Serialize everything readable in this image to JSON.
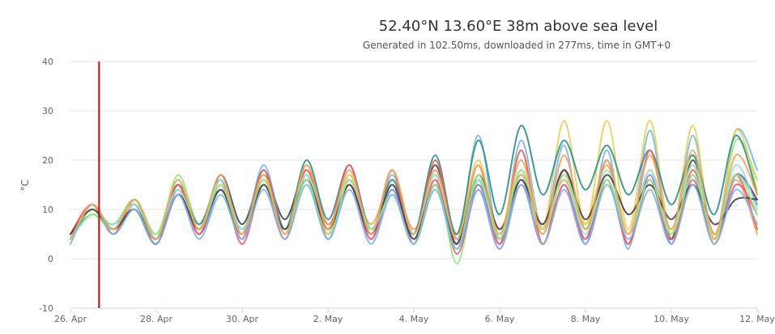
{
  "chart_data": {
    "type": "line",
    "title": "52.40°N 13.60°E 38m above sea level",
    "subtitle": "Generated in 102.50ms, downloaded in 277ms, time in GMT+0",
    "ylabel": "°C",
    "xlabel": "",
    "ylim": [
      -10,
      40
    ],
    "yticks": [
      -10,
      0,
      10,
      20,
      30,
      40
    ],
    "xlim": [
      "2025-04-26",
      "2025-05-12"
    ],
    "xticks": [
      {
        "date": "2025-04-26",
        "label": "26. Apr"
      },
      {
        "date": "2025-04-28",
        "label": "28. Apr"
      },
      {
        "date": "2025-04-30",
        "label": "30. Apr"
      },
      {
        "date": "2025-05-02",
        "label": "2. May"
      },
      {
        "date": "2025-05-04",
        "label": "4. May"
      },
      {
        "date": "2025-05-06",
        "label": "6. May"
      },
      {
        "date": "2025-05-08",
        "label": "8. May"
      },
      {
        "date": "2025-05-10",
        "label": "10. May"
      },
      {
        "date": "2025-05-12",
        "label": "12. May"
      }
    ],
    "grid": "horizontal",
    "current_time_marker": {
      "x": "2025-04-26T16:00",
      "color": "#dd0000"
    },
    "x": [
      "2025-04-26T00:00",
      "2025-04-26T12:00",
      "2025-04-27T00:00",
      "2025-04-27T12:00",
      "2025-04-28T00:00",
      "2025-04-28T12:00",
      "2025-04-29T00:00",
      "2025-04-29T12:00",
      "2025-04-30T00:00",
      "2025-04-30T12:00",
      "2025-05-01T00:00",
      "2025-05-01T12:00",
      "2025-05-02T00:00",
      "2025-05-02T12:00",
      "2025-05-03T00:00",
      "2025-05-03T12:00",
      "2025-05-04T00:00",
      "2025-05-04T12:00",
      "2025-05-05T00:00",
      "2025-05-05T12:00",
      "2025-05-06T00:00",
      "2025-05-06T12:00",
      "2025-05-07T00:00",
      "2025-05-07T12:00",
      "2025-05-08T00:00",
      "2025-05-08T12:00",
      "2025-05-09T00:00",
      "2025-05-09T12:00",
      "2025-05-10T00:00",
      "2025-05-10T12:00",
      "2025-05-11T00:00",
      "2025-05-11T12:00",
      "2025-05-12T00:00"
    ],
    "series": [
      {
        "color": "#434348",
        "values": [
          4,
          10,
          6,
          11,
          4,
          15,
          6,
          17,
          7,
          17,
          8,
          18,
          7,
          16,
          6,
          15,
          5,
          19,
          4,
          16,
          4,
          18,
          5,
          18,
          6,
          16,
          5,
          16,
          4,
          20,
          5,
          17,
          12
        ]
      },
      {
        "color": "#7cb5ec",
        "values": [
          4,
          11,
          6,
          12,
          4,
          15,
          6,
          16,
          5,
          19,
          6,
          18,
          5,
          17,
          5,
          17,
          4,
          18,
          3,
          25,
          4,
          24,
          6,
          23,
          3,
          22,
          2,
          26,
          3,
          25,
          4,
          26,
          18
        ]
      },
      {
        "color": "#90ed7d",
        "values": [
          5,
          10,
          7,
          12,
          4,
          17,
          7,
          16,
          6,
          16,
          6,
          17,
          4,
          15,
          5,
          14,
          3,
          17,
          -1,
          16,
          5,
          17,
          5,
          18,
          6,
          20,
          5,
          18,
          5,
          21,
          4,
          24,
          16
        ]
      },
      {
        "color": "#f7a35c",
        "values": [
          5,
          11,
          5,
          11,
          3,
          14,
          5,
          15,
          5,
          16,
          6,
          19,
          7,
          16,
          7,
          16,
          6,
          16,
          5,
          15,
          6,
          17,
          7,
          16,
          7,
          19,
          5,
          18,
          6,
          19,
          4,
          16,
          5
        ]
      },
      {
        "color": "#8085e9",
        "values": [
          4,
          9,
          6,
          12,
          4,
          14,
          5,
          14,
          6,
          15,
          6,
          16,
          5,
          15,
          4,
          14,
          3,
          15,
          2,
          15,
          3,
          16,
          3,
          15,
          4,
          16,
          3,
          17,
          3,
          17,
          3,
          17,
          11
        ]
      },
      {
        "color": "#f15c80",
        "values": [
          4,
          11,
          5,
          11,
          3,
          14,
          5,
          15,
          3,
          15,
          4,
          17,
          4,
          15,
          4,
          15,
          3,
          16,
          1,
          14,
          2,
          15,
          3,
          15,
          3,
          16,
          3,
          16,
          3,
          16,
          3,
          15,
          9
        ]
      },
      {
        "color": "#e4d354",
        "values": [
          4,
          10,
          6,
          11,
          4,
          15,
          6,
          15,
          5,
          17,
          5,
          18,
          5,
          17,
          5,
          16,
          5,
          17,
          5,
          20,
          5,
          22,
          6,
          28,
          7,
          28,
          6,
          28,
          5,
          27,
          3,
          26,
          14
        ]
      },
      {
        "color": "#2b908f",
        "values": [
          5,
          9,
          7,
          11,
          4,
          15,
          7,
          16,
          5,
          18,
          6,
          20,
          8,
          19,
          6,
          16,
          5,
          21,
          5,
          24,
          9,
          27,
          13,
          24,
          14,
          23,
          13,
          22,
          11,
          21,
          9,
          25,
          13
        ]
      },
      {
        "color": "#f45b5b",
        "values": [
          5,
          11,
          5,
          12,
          5,
          15,
          5,
          16,
          4,
          18,
          5,
          18,
          6,
          19,
          5,
          18,
          3,
          20,
          3,
          19,
          3,
          22,
          3,
          18,
          4,
          20,
          3,
          22,
          4,
          18,
          5,
          17,
          6
        ]
      },
      {
        "color": "#91e8e1",
        "values": [
          4,
          9,
          7,
          11,
          5,
          14,
          6,
          16,
          6,
          15,
          6,
          17,
          6,
          16,
          6,
          15,
          5,
          17,
          4,
          16,
          5,
          18,
          5,
          17,
          5,
          18,
          5,
          18,
          5,
          19,
          5,
          19,
          10
        ]
      },
      {
        "color": "#434348",
        "values": [
          5,
          10,
          6,
          10,
          3,
          13,
          6,
          14,
          5,
          15,
          6,
          16,
          6,
          15,
          5,
          15,
          4,
          15,
          3,
          17,
          6,
          16,
          7,
          18,
          8,
          17,
          9,
          15,
          8,
          15,
          7,
          12,
          12
        ]
      },
      {
        "color": "#90ed7d",
        "values": [
          4,
          9,
          6,
          12,
          5,
          16,
          6,
          15,
          5,
          16,
          5,
          16,
          4,
          16,
          6,
          13,
          3,
          15,
          2,
          17,
          4,
          18,
          5,
          17,
          6,
          16,
          5,
          16,
          5,
          17,
          5,
          17,
          9
        ]
      },
      {
        "color": "#7cb5ec",
        "values": [
          3,
          11,
          5,
          10,
          3,
          13,
          4,
          13,
          4,
          14,
          4,
          15,
          4,
          14,
          3,
          13,
          3,
          14,
          2,
          14,
          2,
          15,
          3,
          14,
          3,
          15,
          4,
          14,
          3,
          15,
          3,
          14,
          7
        ]
      },
      {
        "color": "#f7a35c",
        "values": [
          4,
          11,
          6,
          12,
          4,
          16,
          6,
          17,
          5,
          17,
          5,
          19,
          6,
          18,
          5,
          18,
          5,
          18,
          4,
          19,
          5,
          20,
          5,
          21,
          6,
          20,
          5,
          21,
          6,
          22,
          5,
          21,
          13
        ]
      }
    ]
  }
}
